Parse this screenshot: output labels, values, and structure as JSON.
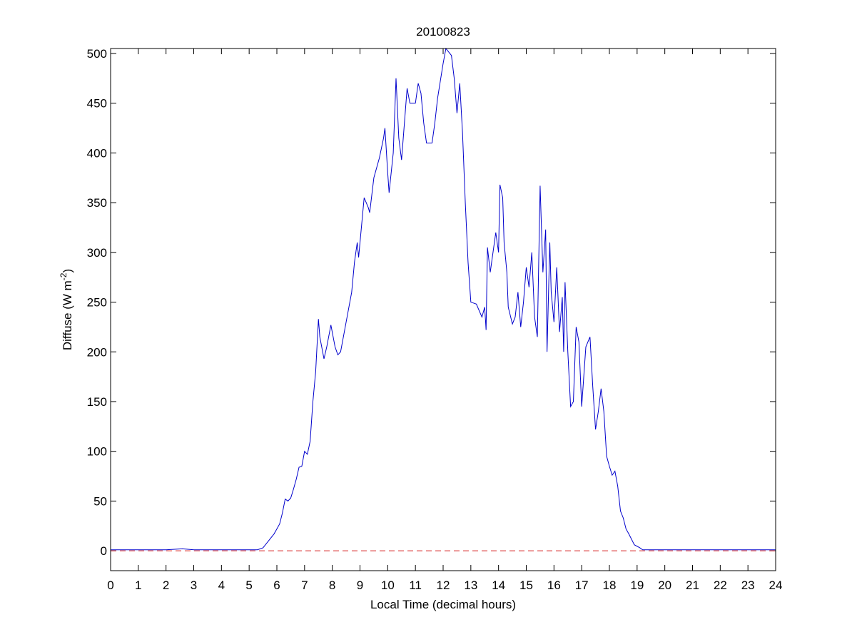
{
  "chart_data": {
    "type": "line",
    "title": "20100823",
    "x_label": "Local Time (decimal hours)",
    "y_label": [
      "Diffuse (W m",
      "-2",
      ")"
    ],
    "xlim": [
      0,
      24
    ],
    "xticks": [
      0,
      1,
      2,
      3,
      4,
      5,
      6,
      7,
      8,
      9,
      10,
      11,
      12,
      13,
      14,
      15,
      16,
      17,
      18,
      19,
      20,
      21,
      22,
      23,
      24
    ],
    "ylim": [
      -20,
      505
    ],
    "yticks": [
      0,
      50,
      100,
      150,
      200,
      250,
      300,
      350,
      400,
      450,
      500
    ],
    "reference_line": {
      "value": 0,
      "color": "#d62728"
    },
    "series": [
      {
        "color": "#0000cc",
        "x": [
          0,
          1,
          2,
          2.6,
          3,
          4,
          5,
          5.3,
          5.5,
          5.7,
          5.9,
          6.1,
          6.2,
          6.3,
          6.4,
          6.5,
          6.6,
          6.7,
          6.8,
          6.9,
          7.0,
          7.1,
          7.2,
          7.3,
          7.4,
          7.5,
          7.55,
          7.7,
          7.8,
          7.95,
          8.1,
          8.2,
          8.3,
          8.5,
          8.7,
          8.8,
          8.9,
          8.95,
          9.1,
          9.15,
          9.3,
          9.35,
          9.5,
          9.7,
          9.85,
          9.9,
          10.0,
          10.05,
          10.2,
          10.3,
          10.4,
          10.5,
          10.7,
          10.8,
          11.0,
          11.1,
          11.2,
          11.3,
          11.4,
          11.6,
          11.7,
          11.8,
          12.0,
          12.1,
          12.3,
          12.4,
          12.5,
          12.6,
          12.7,
          12.8,
          12.9,
          13.0,
          13.2,
          13.4,
          13.5,
          13.55,
          13.6,
          13.7,
          13.8,
          13.9,
          14.0,
          14.05,
          14.15,
          14.2,
          14.3,
          14.35,
          14.5,
          14.6,
          14.7,
          14.8,
          14.9,
          15.0,
          15.1,
          15.2,
          15.3,
          15.4,
          15.5,
          15.6,
          15.7,
          15.75,
          15.85,
          15.9,
          16.0,
          16.1,
          16.2,
          16.3,
          16.35,
          16.4,
          16.5,
          16.6,
          16.7,
          16.8,
          16.9,
          17.0,
          17.15,
          17.3,
          17.4,
          17.5,
          17.6,
          17.7,
          17.8,
          17.9,
          18.0,
          18.1,
          18.2,
          18.3,
          18.4,
          18.5,
          18.6,
          18.7,
          18.9,
          19.1,
          19.2,
          20,
          21,
          22,
          23,
          24
        ],
        "values": [
          1,
          1,
          1,
          2,
          1,
          1,
          1,
          1,
          3,
          10,
          17,
          27,
          38,
          52,
          50,
          53,
          62,
          72,
          84,
          85,
          100,
          97,
          110,
          150,
          180,
          233,
          215,
          193,
          205,
          227,
          205,
          197,
          200,
          230,
          260,
          290,
          310,
          295,
          340,
          355,
          345,
          340,
          375,
          395,
          415,
          425,
          380,
          360,
          400,
          475,
          415,
          393,
          465,
          450,
          450,
          470,
          460,
          430,
          410,
          410,
          430,
          455,
          490,
          505,
          498,
          475,
          440,
          470,
          420,
          350,
          290,
          250,
          248,
          235,
          245,
          222,
          305,
          280,
          300,
          320,
          300,
          368,
          355,
          310,
          280,
          245,
          228,
          235,
          260,
          225,
          250,
          285,
          265,
          300,
          235,
          215,
          367,
          280,
          323,
          200,
          310,
          260,
          230,
          285,
          220,
          255,
          200,
          270,
          200,
          145,
          150,
          225,
          210,
          145,
          205,
          215,
          165,
          122,
          140,
          163,
          140,
          95,
          85,
          76,
          80,
          65,
          40,
          33,
          22,
          17,
          6,
          3,
          1,
          1,
          1,
          1,
          1,
          1
        ]
      }
    ]
  }
}
